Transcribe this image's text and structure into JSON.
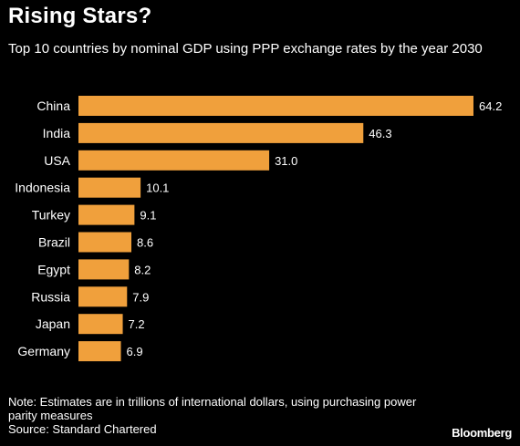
{
  "header": {
    "title": "Rising Stars?",
    "subtitle": "Top 10 countries by nominal GDP using PPP exchange rates by the year 2030"
  },
  "footer": {
    "note": "Note: Estimates are in trillions of international dollars, using purchasing power parity measures",
    "source": "Source: Standard Chartered",
    "brand": "Bloomberg"
  },
  "colors": {
    "bar": "#f0a03c",
    "background": "#000000",
    "text": "#ffffff"
  },
  "chart_data": {
    "type": "bar",
    "orientation": "horizontal",
    "title": "Rising Stars?",
    "subtitle": "Top 10 countries by nominal GDP using PPP exchange rates by the year 2030",
    "categories": [
      "China",
      "India",
      "USA",
      "Indonesia",
      "Turkey",
      "Brazil",
      "Egypt",
      "Russia",
      "Japan",
      "Germany"
    ],
    "values": [
      64.2,
      46.3,
      31.0,
      10.1,
      9.1,
      8.6,
      8.2,
      7.9,
      7.2,
      6.9
    ],
    "value_labels": [
      "64.2",
      "46.3",
      "31.0",
      "10.1",
      "9.1",
      "8.6",
      "8.2",
      "7.9",
      "7.2",
      "6.9"
    ],
    "xlim": [
      0,
      64.2
    ],
    "grid": false,
    "legend": "none"
  }
}
